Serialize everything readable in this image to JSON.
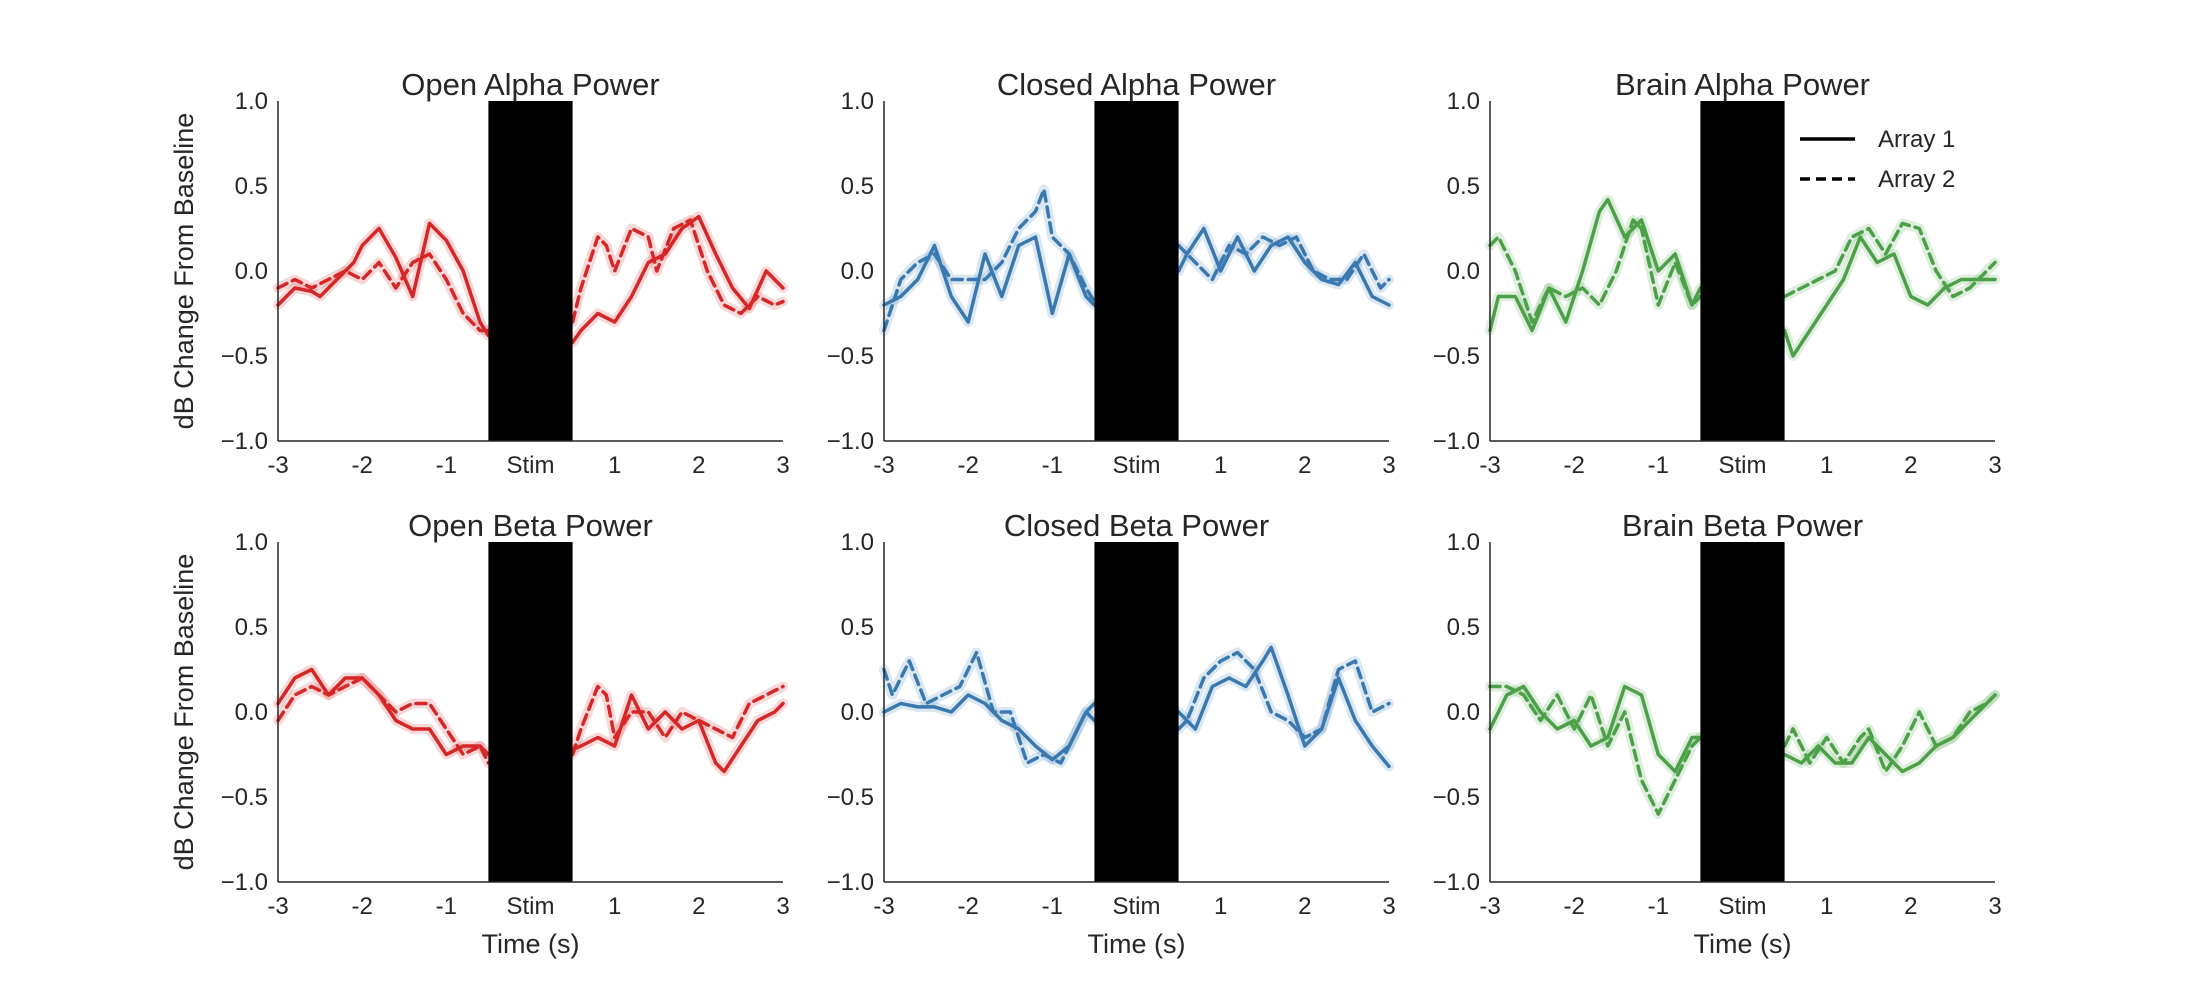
{
  "chart_data": [
    {
      "type": "line",
      "title": "Open Alpha Power",
      "xlabel": "",
      "ylabel": "dB Change From Baseline",
      "xlim": [
        -3,
        3
      ],
      "ylim": [
        -1.0,
        1.0
      ],
      "x_ticks": [
        "-3",
        "-2",
        "-1",
        "Stim",
        "1",
        "2",
        "3"
      ],
      "y_ticks": [
        "1.0",
        "0.5",
        "0.0",
        "−0.5",
        "−1.0"
      ],
      "stim_window": [
        -0.5,
        0.5
      ],
      "color": "#d62728",
      "series": [
        {
          "name": "Array 1",
          "style": "solid",
          "x": [
            -3.0,
            -2.8,
            -2.6,
            -2.5,
            -2.3,
            -2.1,
            -2.0,
            -1.8,
            -1.6,
            -1.4,
            -1.2,
            -1.0,
            -0.8,
            -0.6,
            -0.5,
            0.5,
            0.6,
            0.8,
            1.0,
            1.2,
            1.4,
            1.6,
            1.8,
            2.0,
            2.2,
            2.4,
            2.6,
            2.8,
            3.0
          ],
          "y": [
            -0.2,
            -0.1,
            -0.12,
            -0.15,
            -0.05,
            0.05,
            0.15,
            0.25,
            0.08,
            -0.15,
            0.28,
            0.18,
            0.0,
            -0.3,
            -0.38,
            -0.42,
            -0.35,
            -0.25,
            -0.3,
            -0.15,
            0.05,
            0.1,
            0.25,
            0.32,
            0.1,
            -0.1,
            -0.22,
            0.0,
            -0.1
          ]
        },
        {
          "name": "Array 2",
          "style": "dashed",
          "x": [
            -3.0,
            -2.8,
            -2.6,
            -2.4,
            -2.2,
            -2.0,
            -1.8,
            -1.6,
            -1.4,
            -1.2,
            -1.0,
            -0.8,
            -0.6,
            -0.5,
            0.5,
            0.6,
            0.8,
            0.9,
            1.0,
            1.2,
            1.4,
            1.5,
            1.7,
            1.9,
            2.1,
            2.3,
            2.5,
            2.7,
            2.9,
            3.0
          ],
          "y": [
            -0.1,
            -0.05,
            -0.1,
            -0.05,
            0.0,
            -0.05,
            0.05,
            -0.1,
            0.05,
            0.1,
            -0.05,
            -0.25,
            -0.35,
            -0.35,
            -0.3,
            -0.1,
            0.2,
            0.15,
            0.0,
            0.25,
            0.2,
            0.0,
            0.25,
            0.3,
            0.0,
            -0.2,
            -0.25,
            -0.15,
            -0.2,
            -0.18
          ]
        }
      ]
    },
    {
      "type": "line",
      "title": "Closed Alpha Power",
      "xlabel": "",
      "ylabel": "",
      "xlim": [
        -3,
        3
      ],
      "ylim": [
        -1.0,
        1.0
      ],
      "x_ticks": [
        "-3",
        "-2",
        "-1",
        "Stim",
        "1",
        "2",
        "3"
      ],
      "y_ticks": [
        "1.0",
        "0.5",
        "0.0",
        "−0.5",
        "−1.0"
      ],
      "stim_window": [
        -0.5,
        0.5
      ],
      "color": "#3a78b0",
      "series": [
        {
          "name": "Array 1",
          "style": "solid",
          "x": [
            -3.0,
            -2.8,
            -2.6,
            -2.4,
            -2.2,
            -2.0,
            -1.8,
            -1.6,
            -1.4,
            -1.2,
            -1.0,
            -0.8,
            -0.6,
            -0.5,
            0.5,
            0.6,
            0.8,
            1.0,
            1.2,
            1.4,
            1.6,
            1.8,
            2.0,
            2.2,
            2.4,
            2.6,
            2.8,
            3.0
          ],
          "y": [
            -0.2,
            -0.15,
            -0.05,
            0.15,
            -0.15,
            -0.3,
            0.1,
            -0.15,
            0.15,
            0.2,
            -0.25,
            0.1,
            -0.15,
            -0.2,
            0.0,
            0.1,
            0.25,
            0.0,
            0.2,
            0.0,
            0.15,
            0.2,
            0.05,
            -0.05,
            -0.08,
            0.05,
            -0.15,
            -0.2
          ]
        },
        {
          "name": "Array 2",
          "style": "dashed",
          "x": [
            -3.0,
            -2.8,
            -2.6,
            -2.4,
            -2.2,
            -2.0,
            -1.8,
            -1.6,
            -1.4,
            -1.2,
            -1.1,
            -1.0,
            -0.8,
            -0.6,
            -0.5,
            0.5,
            0.7,
            0.9,
            1.1,
            1.3,
            1.5,
            1.7,
            1.9,
            2.1,
            2.3,
            2.5,
            2.7,
            2.9,
            3.0
          ],
          "y": [
            -0.35,
            -0.05,
            0.05,
            0.1,
            -0.05,
            -0.05,
            -0.05,
            0.05,
            0.25,
            0.35,
            0.48,
            0.2,
            0.1,
            -0.1,
            -0.18,
            0.15,
            0.05,
            -0.05,
            0.15,
            0.1,
            0.2,
            0.15,
            0.2,
            0.0,
            -0.05,
            -0.05,
            0.1,
            -0.1,
            -0.05
          ]
        }
      ]
    },
    {
      "type": "line",
      "title": "Brain Alpha Power",
      "xlabel": "",
      "ylabel": "",
      "xlim": [
        -3,
        3
      ],
      "ylim": [
        -1.0,
        1.0
      ],
      "x_ticks": [
        "-3",
        "-2",
        "-1",
        "Stim",
        "1",
        "2",
        "3"
      ],
      "y_ticks": [
        "1.0",
        "0.5",
        "0.0",
        "−0.5",
        "−1.0"
      ],
      "stim_window": [
        -0.5,
        0.5
      ],
      "color": "#4ba048",
      "legend": {
        "position": "top-right",
        "entries": [
          "Array 1",
          "Array 2"
        ]
      },
      "series": [
        {
          "name": "Array 1",
          "style": "solid",
          "x": [
            -3.0,
            -2.9,
            -2.7,
            -2.5,
            -2.3,
            -2.1,
            -1.9,
            -1.7,
            -1.6,
            -1.4,
            -1.2,
            -1.0,
            -0.8,
            -0.6,
            -0.5,
            0.5,
            0.6,
            0.8,
            1.0,
            1.2,
            1.4,
            1.6,
            1.8,
            2.0,
            2.2,
            2.4,
            2.6,
            2.8,
            3.0
          ],
          "y": [
            -0.35,
            -0.15,
            -0.15,
            -0.35,
            -0.1,
            -0.3,
            0.0,
            0.35,
            0.42,
            0.2,
            0.3,
            0.0,
            0.1,
            -0.2,
            -0.1,
            -0.35,
            -0.5,
            -0.35,
            -0.2,
            -0.05,
            0.2,
            0.05,
            0.1,
            -0.15,
            -0.2,
            -0.1,
            -0.05,
            -0.05,
            -0.05
          ]
        },
        {
          "name": "Array 2",
          "style": "dashed",
          "x": [
            -3.0,
            -2.9,
            -2.7,
            -2.5,
            -2.3,
            -2.1,
            -1.9,
            -1.7,
            -1.5,
            -1.3,
            -1.2,
            -1.0,
            -0.8,
            -0.6,
            -0.5,
            0.5,
            0.7,
            0.9,
            1.1,
            1.3,
            1.5,
            1.7,
            1.9,
            2.1,
            2.3,
            2.5,
            2.7,
            2.9,
            3.0
          ],
          "y": [
            0.15,
            0.2,
            0.0,
            -0.3,
            -0.1,
            -0.15,
            -0.1,
            -0.2,
            0.0,
            0.3,
            0.25,
            -0.2,
            0.05,
            -0.2,
            -0.15,
            -0.15,
            -0.1,
            -0.05,
            0.0,
            0.2,
            0.25,
            0.1,
            0.28,
            0.25,
            0.0,
            -0.15,
            -0.1,
            0.0,
            0.05
          ]
        }
      ]
    },
    {
      "type": "line",
      "title": "Open Beta Power",
      "xlabel": "Time (s)",
      "ylabel": "dB Change From Baseline",
      "xlim": [
        -3,
        3
      ],
      "ylim": [
        -1.0,
        1.0
      ],
      "x_ticks": [
        "-3",
        "-2",
        "-1",
        "Stim",
        "1",
        "2",
        "3"
      ],
      "y_ticks": [
        "1.0",
        "0.5",
        "0.0",
        "−0.5",
        "−1.0"
      ],
      "stim_window": [
        -0.5,
        0.5
      ],
      "color": "#d62728",
      "series": [
        {
          "name": "Array 1",
          "style": "solid",
          "x": [
            -3.0,
            -2.8,
            -2.6,
            -2.4,
            -2.2,
            -2.0,
            -1.8,
            -1.6,
            -1.4,
            -1.2,
            -1.0,
            -0.8,
            -0.6,
            -0.5,
            0.5,
            0.6,
            0.8,
            1.0,
            1.2,
            1.4,
            1.6,
            1.8,
            2.0,
            2.2,
            2.3,
            2.5,
            2.7,
            2.9,
            3.0
          ],
          "y": [
            0.05,
            0.2,
            0.25,
            0.1,
            0.2,
            0.2,
            0.1,
            -0.05,
            -0.1,
            -0.1,
            -0.25,
            -0.2,
            -0.2,
            -0.25,
            -0.22,
            -0.2,
            -0.15,
            -0.2,
            0.1,
            -0.1,
            0.0,
            -0.1,
            -0.05,
            -0.3,
            -0.35,
            -0.2,
            -0.05,
            0.0,
            0.05
          ]
        },
        {
          "name": "Array 2",
          "style": "dashed",
          "x": [
            -3.0,
            -2.8,
            -2.6,
            -2.4,
            -2.2,
            -2.0,
            -1.8,
            -1.6,
            -1.4,
            -1.2,
            -1.0,
            -0.8,
            -0.6,
            -0.5,
            0.5,
            0.6,
            0.8,
            0.9,
            1.0,
            1.2,
            1.4,
            1.6,
            1.8,
            2.0,
            2.2,
            2.4,
            2.6,
            2.8,
            3.0
          ],
          "y": [
            -0.05,
            0.1,
            0.15,
            0.1,
            0.15,
            0.2,
            0.1,
            0.0,
            0.05,
            0.05,
            -0.1,
            -0.25,
            -0.2,
            -0.3,
            -0.25,
            -0.1,
            0.15,
            0.1,
            -0.15,
            0.0,
            0.0,
            -0.15,
            0.0,
            -0.05,
            -0.1,
            -0.15,
            0.05,
            0.1,
            0.15
          ]
        }
      ]
    },
    {
      "type": "line",
      "title": "Closed Beta Power",
      "xlabel": "Time (s)",
      "ylabel": "",
      "xlim": [
        -3,
        3
      ],
      "ylim": [
        -1.0,
        1.0
      ],
      "x_ticks": [
        "-3",
        "-2",
        "-1",
        "Stim",
        "1",
        "2",
        "3"
      ],
      "y_ticks": [
        "1.0",
        "0.5",
        "0.0",
        "−0.5",
        "−1.0"
      ],
      "stim_window": [
        -0.5,
        0.5
      ],
      "color": "#3a78b0",
      "series": [
        {
          "name": "Array 1",
          "style": "solid",
          "x": [
            -3.0,
            -2.8,
            -2.6,
            -2.4,
            -2.2,
            -2.0,
            -1.8,
            -1.6,
            -1.4,
            -1.2,
            -1.0,
            -0.8,
            -0.6,
            -0.5,
            0.5,
            0.7,
            0.9,
            1.1,
            1.3,
            1.5,
            1.6,
            1.8,
            2.0,
            2.2,
            2.4,
            2.6,
            2.8,
            3.0
          ],
          "y": [
            0.0,
            0.05,
            0.03,
            0.03,
            0.0,
            0.1,
            0.05,
            -0.05,
            -0.1,
            -0.2,
            -0.28,
            -0.2,
            0.0,
            -0.05,
            0.0,
            -0.1,
            0.15,
            0.2,
            0.15,
            0.3,
            0.38,
            0.1,
            -0.2,
            -0.1,
            0.2,
            -0.05,
            -0.2,
            -0.32
          ]
        },
        {
          "name": "Array 2",
          "style": "dashed",
          "x": [
            -3.0,
            -2.9,
            -2.7,
            -2.5,
            -2.3,
            -2.1,
            -1.9,
            -1.7,
            -1.5,
            -1.3,
            -1.1,
            -0.9,
            -0.7,
            -0.6,
            -0.5,
            0.5,
            0.6,
            0.8,
            1.0,
            1.2,
            1.4,
            1.6,
            1.8,
            2.0,
            2.2,
            2.4,
            2.6,
            2.8,
            3.0
          ],
          "y": [
            0.25,
            0.1,
            0.3,
            0.05,
            0.1,
            0.15,
            0.35,
            0.0,
            0.0,
            -0.3,
            -0.25,
            -0.3,
            -0.1,
            0.0,
            0.05,
            -0.1,
            -0.05,
            0.2,
            0.3,
            0.35,
            0.25,
            0.0,
            -0.05,
            -0.15,
            -0.1,
            0.25,
            0.3,
            0.0,
            0.05
          ]
        }
      ]
    },
    {
      "type": "line",
      "title": "Brain Beta Power",
      "xlabel": "Time (s)",
      "ylabel": "",
      "xlim": [
        -3,
        3
      ],
      "ylim": [
        -1.0,
        1.0
      ],
      "x_ticks": [
        "-3",
        "-2",
        "-1",
        "Stim",
        "1",
        "2",
        "3"
      ],
      "y_ticks": [
        "1.0",
        "0.5",
        "0.0",
        "−0.5",
        "−1.0"
      ],
      "stim_window": [
        -0.5,
        0.5
      ],
      "color": "#4ba048",
      "series": [
        {
          "name": "Array 1",
          "style": "solid",
          "x": [
            -3.0,
            -2.8,
            -2.6,
            -2.4,
            -2.2,
            -2.0,
            -1.8,
            -1.6,
            -1.4,
            -1.2,
            -1.0,
            -0.8,
            -0.6,
            -0.5,
            0.5,
            0.7,
            0.9,
            1.1,
            1.3,
            1.5,
            1.7,
            1.9,
            2.1,
            2.3,
            2.5,
            2.7,
            2.9,
            3.0
          ],
          "y": [
            -0.1,
            0.1,
            0.15,
            0.0,
            -0.1,
            -0.05,
            -0.2,
            -0.15,
            0.15,
            0.1,
            -0.25,
            -0.35,
            -0.15,
            -0.15,
            -0.25,
            -0.3,
            -0.2,
            -0.3,
            -0.3,
            -0.15,
            -0.25,
            -0.35,
            -0.3,
            -0.2,
            -0.15,
            -0.05,
            0.05,
            0.1
          ]
        },
        {
          "name": "Array 2",
          "style": "dashed",
          "x": [
            -3.0,
            -2.8,
            -2.6,
            -2.4,
            -2.2,
            -2.0,
            -1.8,
            -1.6,
            -1.4,
            -1.2,
            -1.0,
            -0.8,
            -0.6,
            -0.5,
            0.5,
            0.6,
            0.8,
            1.0,
            1.2,
            1.4,
            1.5,
            1.7,
            1.9,
            2.1,
            2.3,
            2.5,
            2.7,
            2.9,
            3.0
          ],
          "y": [
            0.15,
            0.15,
            0.1,
            -0.05,
            0.1,
            -0.1,
            0.1,
            -0.2,
            0.0,
            -0.4,
            -0.6,
            -0.4,
            -0.2,
            -0.15,
            -0.2,
            -0.1,
            -0.3,
            -0.15,
            -0.3,
            -0.15,
            -0.1,
            -0.35,
            -0.2,
            0.0,
            -0.2,
            -0.15,
            0.0,
            0.05,
            0.1
          ]
        }
      ]
    }
  ]
}
